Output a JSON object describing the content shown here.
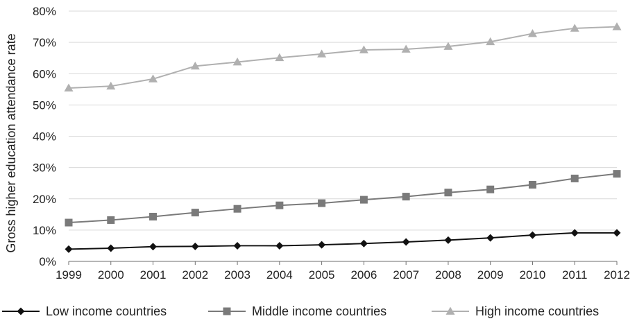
{
  "chart_data": {
    "type": "line",
    "title": "",
    "xlabel": "",
    "ylabel": "Gross higher education attendance rate",
    "x": [
      "1999",
      "2000",
      "2001",
      "2002",
      "2003",
      "2004",
      "2005",
      "2006",
      "2007",
      "2008",
      "2009",
      "2010",
      "2011",
      "2012"
    ],
    "ylim": [
      0,
      80
    ],
    "y_ticks": [
      0,
      10,
      20,
      30,
      40,
      50,
      60,
      70,
      80
    ],
    "y_tick_labels": [
      "0%",
      "10%",
      "20%",
      "30%",
      "40%",
      "50%",
      "60%",
      "70%",
      "80%"
    ],
    "grid": true,
    "legend_position": "bottom",
    "series": [
      {
        "name": "Low income countries",
        "color": "#111111",
        "marker": "diamond",
        "values": [
          3.9,
          4.2,
          4.7,
          4.8,
          5.0,
          5.0,
          5.3,
          5.7,
          6.2,
          6.8,
          7.5,
          8.4,
          9.1,
          9.1
        ]
      },
      {
        "name": "Middle income countries",
        "color": "#7a7a7a",
        "marker": "square",
        "values": [
          12.4,
          13.2,
          14.3,
          15.6,
          16.8,
          17.9,
          18.6,
          19.7,
          20.7,
          22.0,
          23.0,
          24.5,
          26.5,
          28.0
        ]
      },
      {
        "name": "High income countries",
        "color": "#b0b0b0",
        "marker": "triangle",
        "values": [
          55.4,
          56.0,
          58.3,
          62.4,
          63.7,
          65.1,
          66.3,
          67.6,
          67.8,
          68.7,
          70.2,
          72.8,
          74.5,
          75.0
        ]
      }
    ]
  }
}
